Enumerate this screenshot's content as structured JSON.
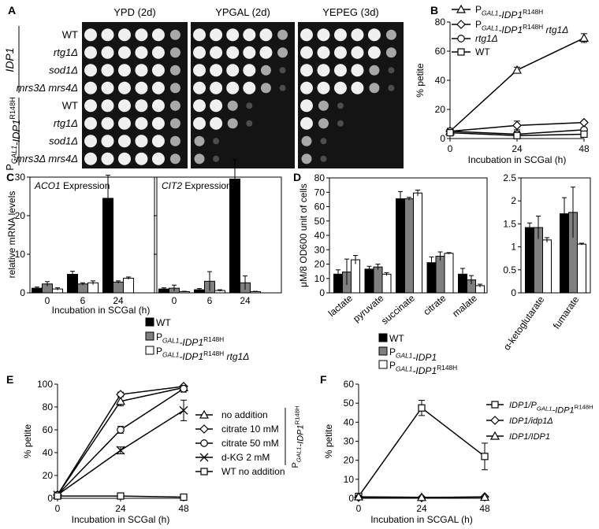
{
  "panels": {
    "A": "A",
    "B": "B",
    "C": "C",
    "D": "D",
    "E": "E",
    "F": "F"
  },
  "spot": {
    "conditions": [
      "YPD (2d)",
      "YPGAL (2d)",
      "YEPEG (3d)"
    ],
    "groups": [
      {
        "label": "IDP1",
        "sub": ""
      },
      {
        "label": "P",
        "sub": "GAL1",
        "gene": "-IDP1",
        "sup": "R148H"
      }
    ],
    "strains": [
      "WT",
      "rtg1Δ",
      "sod1Δ",
      "mrs3Δ mrs4Δ",
      "WT",
      "rtg1Δ",
      "sod1Δ",
      "mrs3Δ mrs4Δ"
    ],
    "growth": [
      [
        6,
        6,
        6
      ],
      [
        6,
        6,
        6
      ],
      [
        6,
        5,
        5
      ],
      [
        6,
        5,
        5
      ],
      [
        6,
        3,
        2
      ],
      [
        6,
        3,
        2
      ],
      [
        6,
        1,
        1
      ],
      [
        6,
        1,
        1
      ]
    ]
  },
  "colors": {
    "black": "#000000",
    "gray": "#7f7f7f",
    "white": "#ffffff"
  },
  "chart_data": [
    {
      "id": "B",
      "type": "line",
      "x": [
        0,
        24,
        48
      ],
      "xlabel": "Incubation in SCGal (h)",
      "ylabel": "% petite",
      "ylim": [
        0,
        80
      ],
      "yticks": [
        0,
        20,
        40,
        60,
        80
      ],
      "legend_position": "top-right",
      "series": [
        {
          "name": "PGAL1-IDP1R148H",
          "name_parts": {
            "a": "P",
            "sub": "GAL1",
            "b": "-IDP1",
            "sup": "R148H"
          },
          "marker": "triangle",
          "values": [
            5,
            47,
            69
          ],
          "err": [
            2,
            2,
            3
          ]
        },
        {
          "name": "PGAL1-IDP1R148H rtg1Δ",
          "name_parts": {
            "a": "P",
            "sub": "GAL1",
            "b": "-IDP1",
            "sup": "R148H",
            "c": " rtg1Δ"
          },
          "marker": "diamond",
          "values": [
            5,
            9,
            11
          ],
          "err": [
            2,
            3,
            1
          ]
        },
        {
          "name": "rtg1Δ",
          "name_parts": {
            "a": "rtg1Δ"
          },
          "marker": "circle",
          "values": [
            5,
            3,
            6
          ],
          "err": [
            2,
            2,
            1
          ]
        },
        {
          "name": "WT",
          "name_parts": {
            "a": "WT"
          },
          "marker": "square",
          "values": [
            4,
            2,
            3
          ],
          "err": [
            2,
            1,
            1
          ]
        }
      ]
    },
    {
      "id": "C",
      "type": "bar",
      "ylabel": "relative mRNA levels",
      "xlabel": "Incubation in SCGal (h)",
      "categories": [
        "0",
        "6",
        "24"
      ],
      "ylim": [
        0,
        30
      ],
      "yticks": [
        0,
        10,
        20,
        30
      ],
      "subplots": [
        {
          "title_gene": "ACO1",
          "title_rest": " Expression",
          "values": [
            [
              1.2,
              4.8,
              24.5
            ],
            [
              2.3,
              2.3,
              2.8
            ],
            [
              1.0,
              2.6,
              3.8
            ]
          ],
          "err": [
            [
              0.3,
              0.8,
              6
            ],
            [
              0.6,
              0.3,
              0.3
            ],
            [
              0.3,
              0.5,
              0.3
            ]
          ]
        },
        {
          "title_gene": "CIT2",
          "title_rest": " Expression",
          "values": [
            [
              1.0,
              0.8,
              29.5
            ],
            [
              1.2,
              3.0,
              2.6
            ],
            [
              0.3,
              0.6,
              0.3
            ]
          ],
          "err": [
            [
              0.3,
              0.3,
              5
            ],
            [
              0.8,
              2.5,
              1.8
            ],
            [
              0.1,
              0.2,
              0.1
            ]
          ]
        }
      ],
      "series": [
        {
          "name": "WT",
          "color": "#000000",
          "name_parts": {
            "a": "WT"
          }
        },
        {
          "name": "PGAL1-IDP1R148H",
          "color": "#7f7f7f",
          "name_parts": {
            "a": "P",
            "sub": "GAL1",
            "b": "-IDP1",
            "sup": "R148H"
          }
        },
        {
          "name": "PGAL1-IDP1R148H rtg1Δ",
          "color": "#ffffff",
          "name_parts": {
            "a": "P",
            "sub": "GAL1",
            "b": "-IDP1",
            "sup": "R148H",
            "c": " rtg1Δ"
          }
        }
      ]
    },
    {
      "id": "D",
      "type": "bar",
      "ylabel": "μM/8 OD600 unit of cells",
      "subplots": [
        {
          "categories": [
            "lactate",
            "pyruvate",
            "succinate",
            "citrate",
            "malate"
          ],
          "ylim": [
            0,
            80
          ],
          "yticks": [
            0,
            10,
            20,
            30,
            40,
            50,
            60,
            70,
            80
          ],
          "values": [
            [
              13,
              16.5,
              65.5,
              21,
              13
            ],
            [
              14.5,
              18,
              65.5,
              25.5,
              9
            ],
            [
              23,
              13,
              69.5,
              27.5,
              5
            ]
          ],
          "err": [
            [
              3,
              2,
              5,
              4,
              4
            ],
            [
              9,
              2,
              1,
              3,
              3
            ],
            [
              3,
              1,
              2,
              0.5,
              1
            ]
          ]
        },
        {
          "categories": [
            "α-ketoglutarate",
            "fumarate"
          ],
          "ylim": [
            0,
            2.5
          ],
          "yticks": [
            0,
            0.5,
            1,
            1.5,
            2,
            2.5
          ],
          "values": [
            [
              1.42,
              1.72
            ],
            [
              1.42,
              1.75
            ],
            [
              1.15,
              1.06
            ]
          ],
          "err": [
            [
              0.1,
              0.35
            ],
            [
              0.25,
              0.55
            ],
            [
              0.05,
              0.02
            ]
          ]
        }
      ],
      "series": [
        {
          "name": "WT",
          "color": "#000000",
          "name_parts": {
            "a": "WT"
          }
        },
        {
          "name": "PGAL1-IDP1",
          "color": "#7f7f7f",
          "name_parts": {
            "a": "P",
            "sub": "GAL1",
            "b": "-IDP1"
          }
        },
        {
          "name": "PGAL1-IDP1R148H",
          "color": "#ffffff",
          "name_parts": {
            "a": "P",
            "sub": "GAL1",
            "b": "-IDP1",
            "sup": "R148H"
          }
        }
      ]
    },
    {
      "id": "E",
      "type": "line",
      "x": [
        0,
        24,
        48
      ],
      "xlabel": "Incubation in SCGal (h)",
      "ylabel": "% petite",
      "ylim": [
        0,
        100
      ],
      "yticks": [
        0,
        20,
        40,
        60,
        80,
        100
      ],
      "bracket_label": {
        "a": "P",
        "sub": "GAL1",
        "b": "-IDP1",
        "sup": "R148H"
      },
      "series": [
        {
          "name": "no addition",
          "marker": "triangle",
          "values": [
            3,
            85,
            97
          ],
          "err": [
            1,
            4,
            2
          ]
        },
        {
          "name": "citrate 10 mM",
          "marker": "diamond",
          "values": [
            3,
            91,
            98
          ],
          "err": [
            1,
            2,
            1
          ]
        },
        {
          "name": "citrate 50 mM",
          "marker": "circle",
          "values": [
            3,
            60,
            96
          ],
          "err": [
            1,
            3,
            3
          ]
        },
        {
          "name": "d-KG 2 mM",
          "marker": "x",
          "values": [
            3,
            42,
            77
          ],
          "err": [
            1,
            3,
            9
          ]
        },
        {
          "name": "WT no addition",
          "marker": "square",
          "values": [
            2,
            2,
            1
          ],
          "err": [
            1,
            2,
            0.5
          ]
        }
      ]
    },
    {
      "id": "F",
      "type": "line",
      "x": [
        0,
        24,
        48
      ],
      "xlabel": "Incubation in SCGAL (h)",
      "ylabel": "% petite",
      "ylim": [
        0,
        60
      ],
      "yticks": [
        0,
        10,
        20,
        30,
        40,
        50,
        60
      ],
      "legend_position": "top-right",
      "series": [
        {
          "name": "IDP1/PGAL1-IDP1R148H",
          "name_parts": {
            "a": "IDP1/P",
            "sub": "GAL1",
            "b": "-IDP1",
            "sup": "R148H"
          },
          "marker": "square",
          "values": [
            1,
            47.5,
            22
          ],
          "err": [
            1,
            4,
            7
          ]
        },
        {
          "name": "IDP1/idp1Δ",
          "name_parts": {
            "a": "IDP1/idp1Δ"
          },
          "marker": "diamond",
          "values": [
            0.5,
            0.3,
            0.8
          ],
          "err": [
            0.5,
            0.5,
            0.5
          ]
        },
        {
          "name": "IDP1/IDP1",
          "name_parts": {
            "a": "IDP1/IDP1"
          },
          "marker": "triangle",
          "values": [
            0.8,
            0.5,
            0.6
          ],
          "err": [
            0.5,
            0.5,
            0.5
          ]
        }
      ]
    }
  ]
}
